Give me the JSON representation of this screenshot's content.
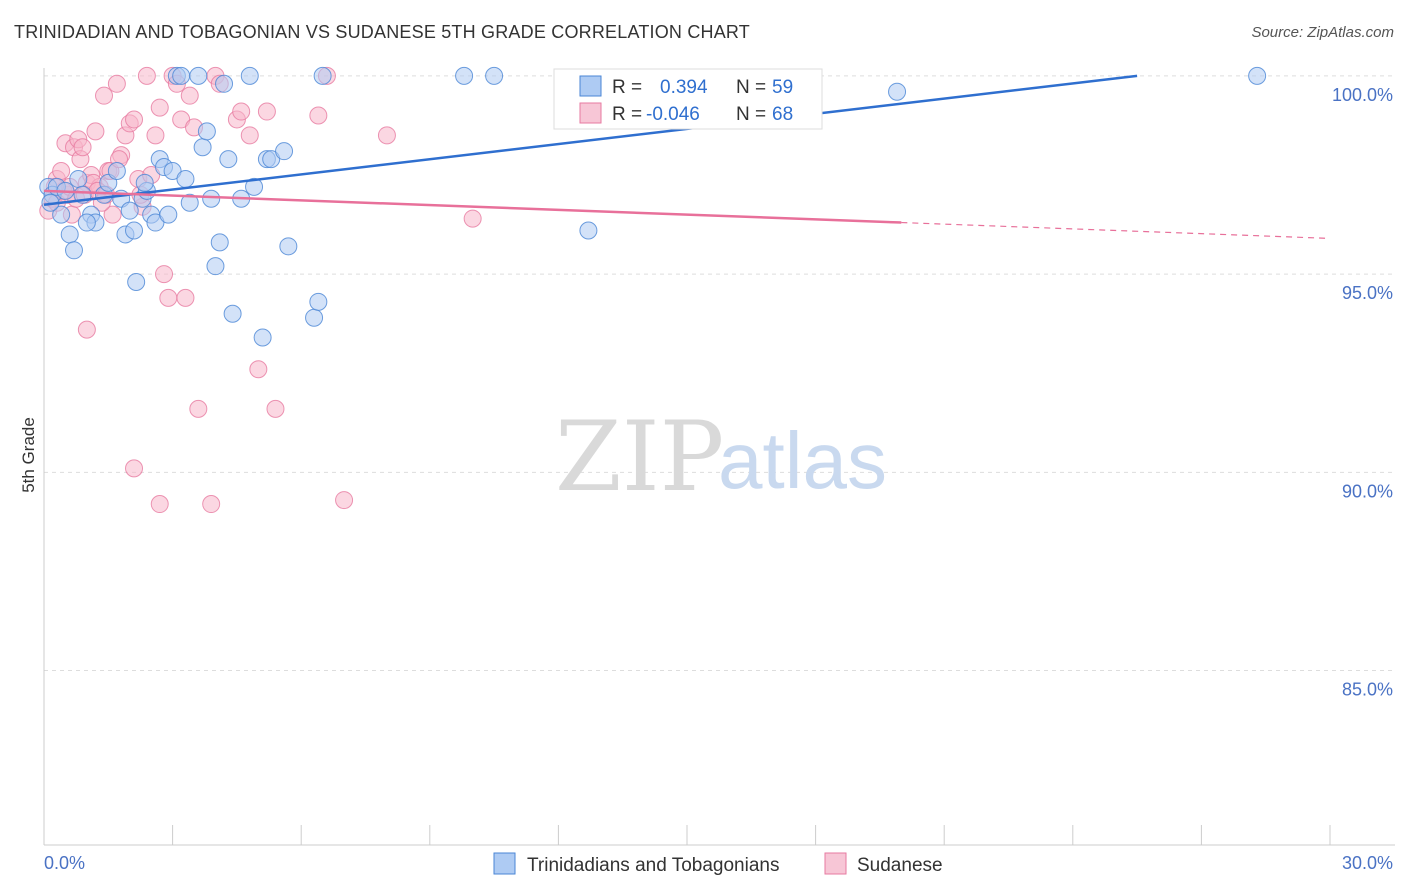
{
  "title": "TRINIDADIAN AND TOBAGONIAN VS SUDANESE 5TH GRADE CORRELATION CHART",
  "source": "Source: ZipAtlas.com",
  "watermark": {
    "zip": "ZIP",
    "atlas": "atlas"
  },
  "colors": {
    "blue": "#4a86d6",
    "blue_fill": "#aecbf3",
    "blue_line": "#2f6fcf",
    "pink": "#e77aa0",
    "pink_fill": "#f7b6cb",
    "pink_line": "#e8709a",
    "grid": "#dddddd",
    "axis_text": "#4a72c4"
  },
  "legend": {
    "rows": [
      {
        "r_label": "R =",
        "r_value": "0.394",
        "n_label": "N =",
        "n_value": "59"
      },
      {
        "r_label": "R =",
        "r_value": "-0.046",
        "n_label": "N =",
        "n_value": "68"
      }
    ]
  },
  "chart_data": {
    "type": "scatter",
    "title": "TRINIDADIAN AND TOBAGONIAN VS SUDANESE 5TH GRADE CORRELATION CHART",
    "xlabel": "",
    "ylabel": "5th Grade",
    "xlim": [
      0,
      30
    ],
    "ylim": [
      80.6,
      100.4
    ],
    "x_tick_labels": [
      "0.0%",
      "30.0%"
    ],
    "y_ticks": [
      100,
      95,
      90,
      85
    ],
    "y_tick_labels": [
      "100.0%",
      "95.0%",
      "90.0%",
      "85.0%"
    ],
    "grid": true,
    "series": [
      {
        "name": "Trinidadians and Tobagonians",
        "color": "blue",
        "R": 0.394,
        "N": 59,
        "trend": {
          "x0": 0.0,
          "y0": 96.75,
          "x1": 25.5,
          "y1": 100.0
        },
        "points": [
          [
            0.1,
            97.2
          ],
          [
            0.2,
            97.0
          ],
          [
            0.3,
            97.2
          ],
          [
            0.4,
            96.5
          ],
          [
            0.5,
            97.1
          ],
          [
            0.6,
            96.0
          ],
          [
            0.7,
            95.6
          ],
          [
            0.8,
            97.4
          ],
          [
            0.9,
            97.0
          ],
          [
            1.1,
            96.5
          ],
          [
            1.2,
            96.3
          ],
          [
            1.4,
            97.0
          ],
          [
            1.5,
            97.3
          ],
          [
            1.7,
            97.6
          ],
          [
            1.8,
            96.9
          ],
          [
            1.9,
            96.0
          ],
          [
            2.0,
            96.6
          ],
          [
            2.1,
            96.1
          ],
          [
            2.15,
            94.8
          ],
          [
            2.3,
            96.9
          ],
          [
            2.4,
            97.1
          ],
          [
            2.5,
            96.5
          ],
          [
            2.6,
            96.3
          ],
          [
            2.7,
            97.9
          ],
          [
            2.8,
            97.7
          ],
          [
            2.9,
            96.5
          ],
          [
            3.0,
            97.6
          ],
          [
            3.1,
            100.0
          ],
          [
            3.2,
            100.0
          ],
          [
            3.3,
            97.4
          ],
          [
            3.4,
            96.8
          ],
          [
            3.6,
            100.0
          ],
          [
            3.7,
            98.2
          ],
          [
            3.8,
            98.6
          ],
          [
            4.0,
            95.2
          ],
          [
            4.1,
            95.8
          ],
          [
            4.2,
            99.8
          ],
          [
            4.3,
            97.9
          ],
          [
            4.4,
            94.0
          ],
          [
            4.6,
            96.9
          ],
          [
            4.8,
            100.0
          ],
          [
            4.9,
            97.2
          ],
          [
            5.1,
            93.4
          ],
          [
            5.2,
            97.9
          ],
          [
            5.3,
            97.9
          ],
          [
            5.6,
            98.1
          ],
          [
            5.7,
            95.7
          ],
          [
            6.3,
            93.9
          ],
          [
            6.4,
            94.3
          ],
          [
            6.5,
            100.0
          ],
          [
            9.8,
            100.0
          ],
          [
            10.5,
            100.0
          ],
          [
            12.7,
            96.1
          ],
          [
            19.9,
            99.6
          ],
          [
            28.3,
            100.0
          ],
          [
            0.15,
            96.8
          ],
          [
            1.0,
            96.3
          ],
          [
            2.35,
            97.3
          ],
          [
            3.9,
            96.9
          ]
        ]
      },
      {
        "name": "Sudanese",
        "color": "pink",
        "R": -0.046,
        "N": 68,
        "trend": {
          "x0": 0.0,
          "y0": 97.1,
          "x1": 20.0,
          "y1": 96.3
        },
        "trend_dashed": {
          "x0": 20.0,
          "y0": 96.3,
          "x1": 30.0,
          "y1": 95.9
        },
        "points": [
          [
            0.1,
            96.6
          ],
          [
            0.2,
            96.9
          ],
          [
            0.3,
            97.4
          ],
          [
            0.4,
            97.6
          ],
          [
            0.5,
            98.3
          ],
          [
            0.55,
            97.0
          ],
          [
            0.65,
            96.5
          ],
          [
            0.7,
            98.2
          ],
          [
            0.8,
            98.4
          ],
          [
            0.85,
            97.9
          ],
          [
            0.9,
            98.2
          ],
          [
            1.0,
            97.3
          ],
          [
            1.1,
            97.5
          ],
          [
            1.2,
            98.6
          ],
          [
            1.3,
            97.2
          ],
          [
            1.4,
            99.5
          ],
          [
            1.5,
            97.6
          ],
          [
            1.6,
            96.5
          ],
          [
            1.7,
            99.8
          ],
          [
            1.8,
            98.0
          ],
          [
            1.9,
            98.5
          ],
          [
            2.0,
            98.8
          ],
          [
            2.1,
            98.9
          ],
          [
            2.2,
            97.4
          ],
          [
            2.3,
            96.7
          ],
          [
            2.4,
            100.0
          ],
          [
            2.5,
            97.5
          ],
          [
            2.6,
            98.5
          ],
          [
            2.7,
            99.2
          ],
          [
            2.8,
            95.0
          ],
          [
            2.9,
            94.4
          ],
          [
            3.0,
            100.0
          ],
          [
            3.1,
            99.8
          ],
          [
            3.2,
            98.9
          ],
          [
            3.3,
            94.4
          ],
          [
            3.4,
            99.5
          ],
          [
            3.5,
            98.7
          ],
          [
            3.6,
            91.6
          ],
          [
            4.0,
            100.0
          ],
          [
            4.1,
            99.8
          ],
          [
            4.5,
            98.9
          ],
          [
            4.6,
            99.1
          ],
          [
            4.8,
            98.5
          ],
          [
            5.0,
            92.6
          ],
          [
            5.2,
            99.1
          ],
          [
            5.4,
            91.6
          ],
          [
            6.4,
            99.0
          ],
          [
            6.6,
            100.0
          ],
          [
            7.0,
            89.3
          ],
          [
            8.0,
            98.5
          ],
          [
            10.0,
            96.4
          ],
          [
            1.0,
            93.6
          ],
          [
            2.1,
            90.1
          ],
          [
            2.7,
            89.2
          ],
          [
            3.9,
            89.2
          ],
          [
            0.3,
            96.8
          ],
          [
            0.45,
            97.1
          ],
          [
            0.6,
            97.2
          ],
          [
            0.75,
            96.9
          ],
          [
            0.95,
            97.0
          ],
          [
            1.15,
            97.3
          ],
          [
            1.25,
            97.1
          ],
          [
            1.35,
            96.8
          ],
          [
            1.45,
            97.0
          ],
          [
            1.55,
            97.6
          ],
          [
            1.75,
            97.9
          ],
          [
            2.25,
            97.0
          ],
          [
            0.25,
            97.2
          ]
        ]
      }
    ]
  }
}
